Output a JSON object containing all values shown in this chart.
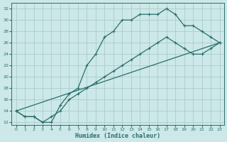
{
  "title": "",
  "xlabel": "Humidex (Indice chaleur)",
  "ylabel": "",
  "background_color": "#cce8e8",
  "grid_color": "#aacccc",
  "line_color": "#2a6e6a",
  "xlim": [
    -0.5,
    23.5
  ],
  "ylim": [
    11.5,
    33
  ],
  "xticks": [
    0,
    1,
    2,
    3,
    4,
    5,
    6,
    7,
    8,
    9,
    10,
    11,
    12,
    13,
    14,
    15,
    16,
    17,
    18,
    19,
    20,
    21,
    22,
    23
  ],
  "yticks": [
    12,
    14,
    16,
    18,
    20,
    22,
    24,
    26,
    28,
    30,
    32
  ],
  "line1_x": [
    0,
    1,
    2,
    3,
    4,
    5,
    6,
    7,
    8,
    9,
    10,
    11,
    12,
    13,
    14,
    15,
    16,
    17,
    18,
    19,
    20,
    21,
    22,
    23
  ],
  "line1_y": [
    14,
    13,
    13,
    12,
    12,
    15,
    17,
    18,
    22,
    24,
    27,
    28,
    30,
    30,
    31,
    31,
    31,
    32,
    31,
    29,
    29,
    28,
    27,
    26
  ],
  "line2_x": [
    0,
    1,
    2,
    3,
    4,
    5,
    6,
    7,
    8,
    9,
    10,
    11,
    12,
    13,
    14,
    15,
    16,
    17,
    18,
    19,
    20,
    21,
    22,
    23
  ],
  "line2_y": [
    14,
    13,
    13,
    12,
    13,
    14,
    16,
    17,
    18,
    19,
    20,
    21,
    22,
    23,
    24,
    25,
    26,
    27,
    26,
    25,
    24,
    24,
    25,
    26
  ],
  "line3_x": [
    0,
    23
  ],
  "line3_y": [
    14,
    26
  ],
  "markersize": 2.5,
  "linewidth": 0.9
}
